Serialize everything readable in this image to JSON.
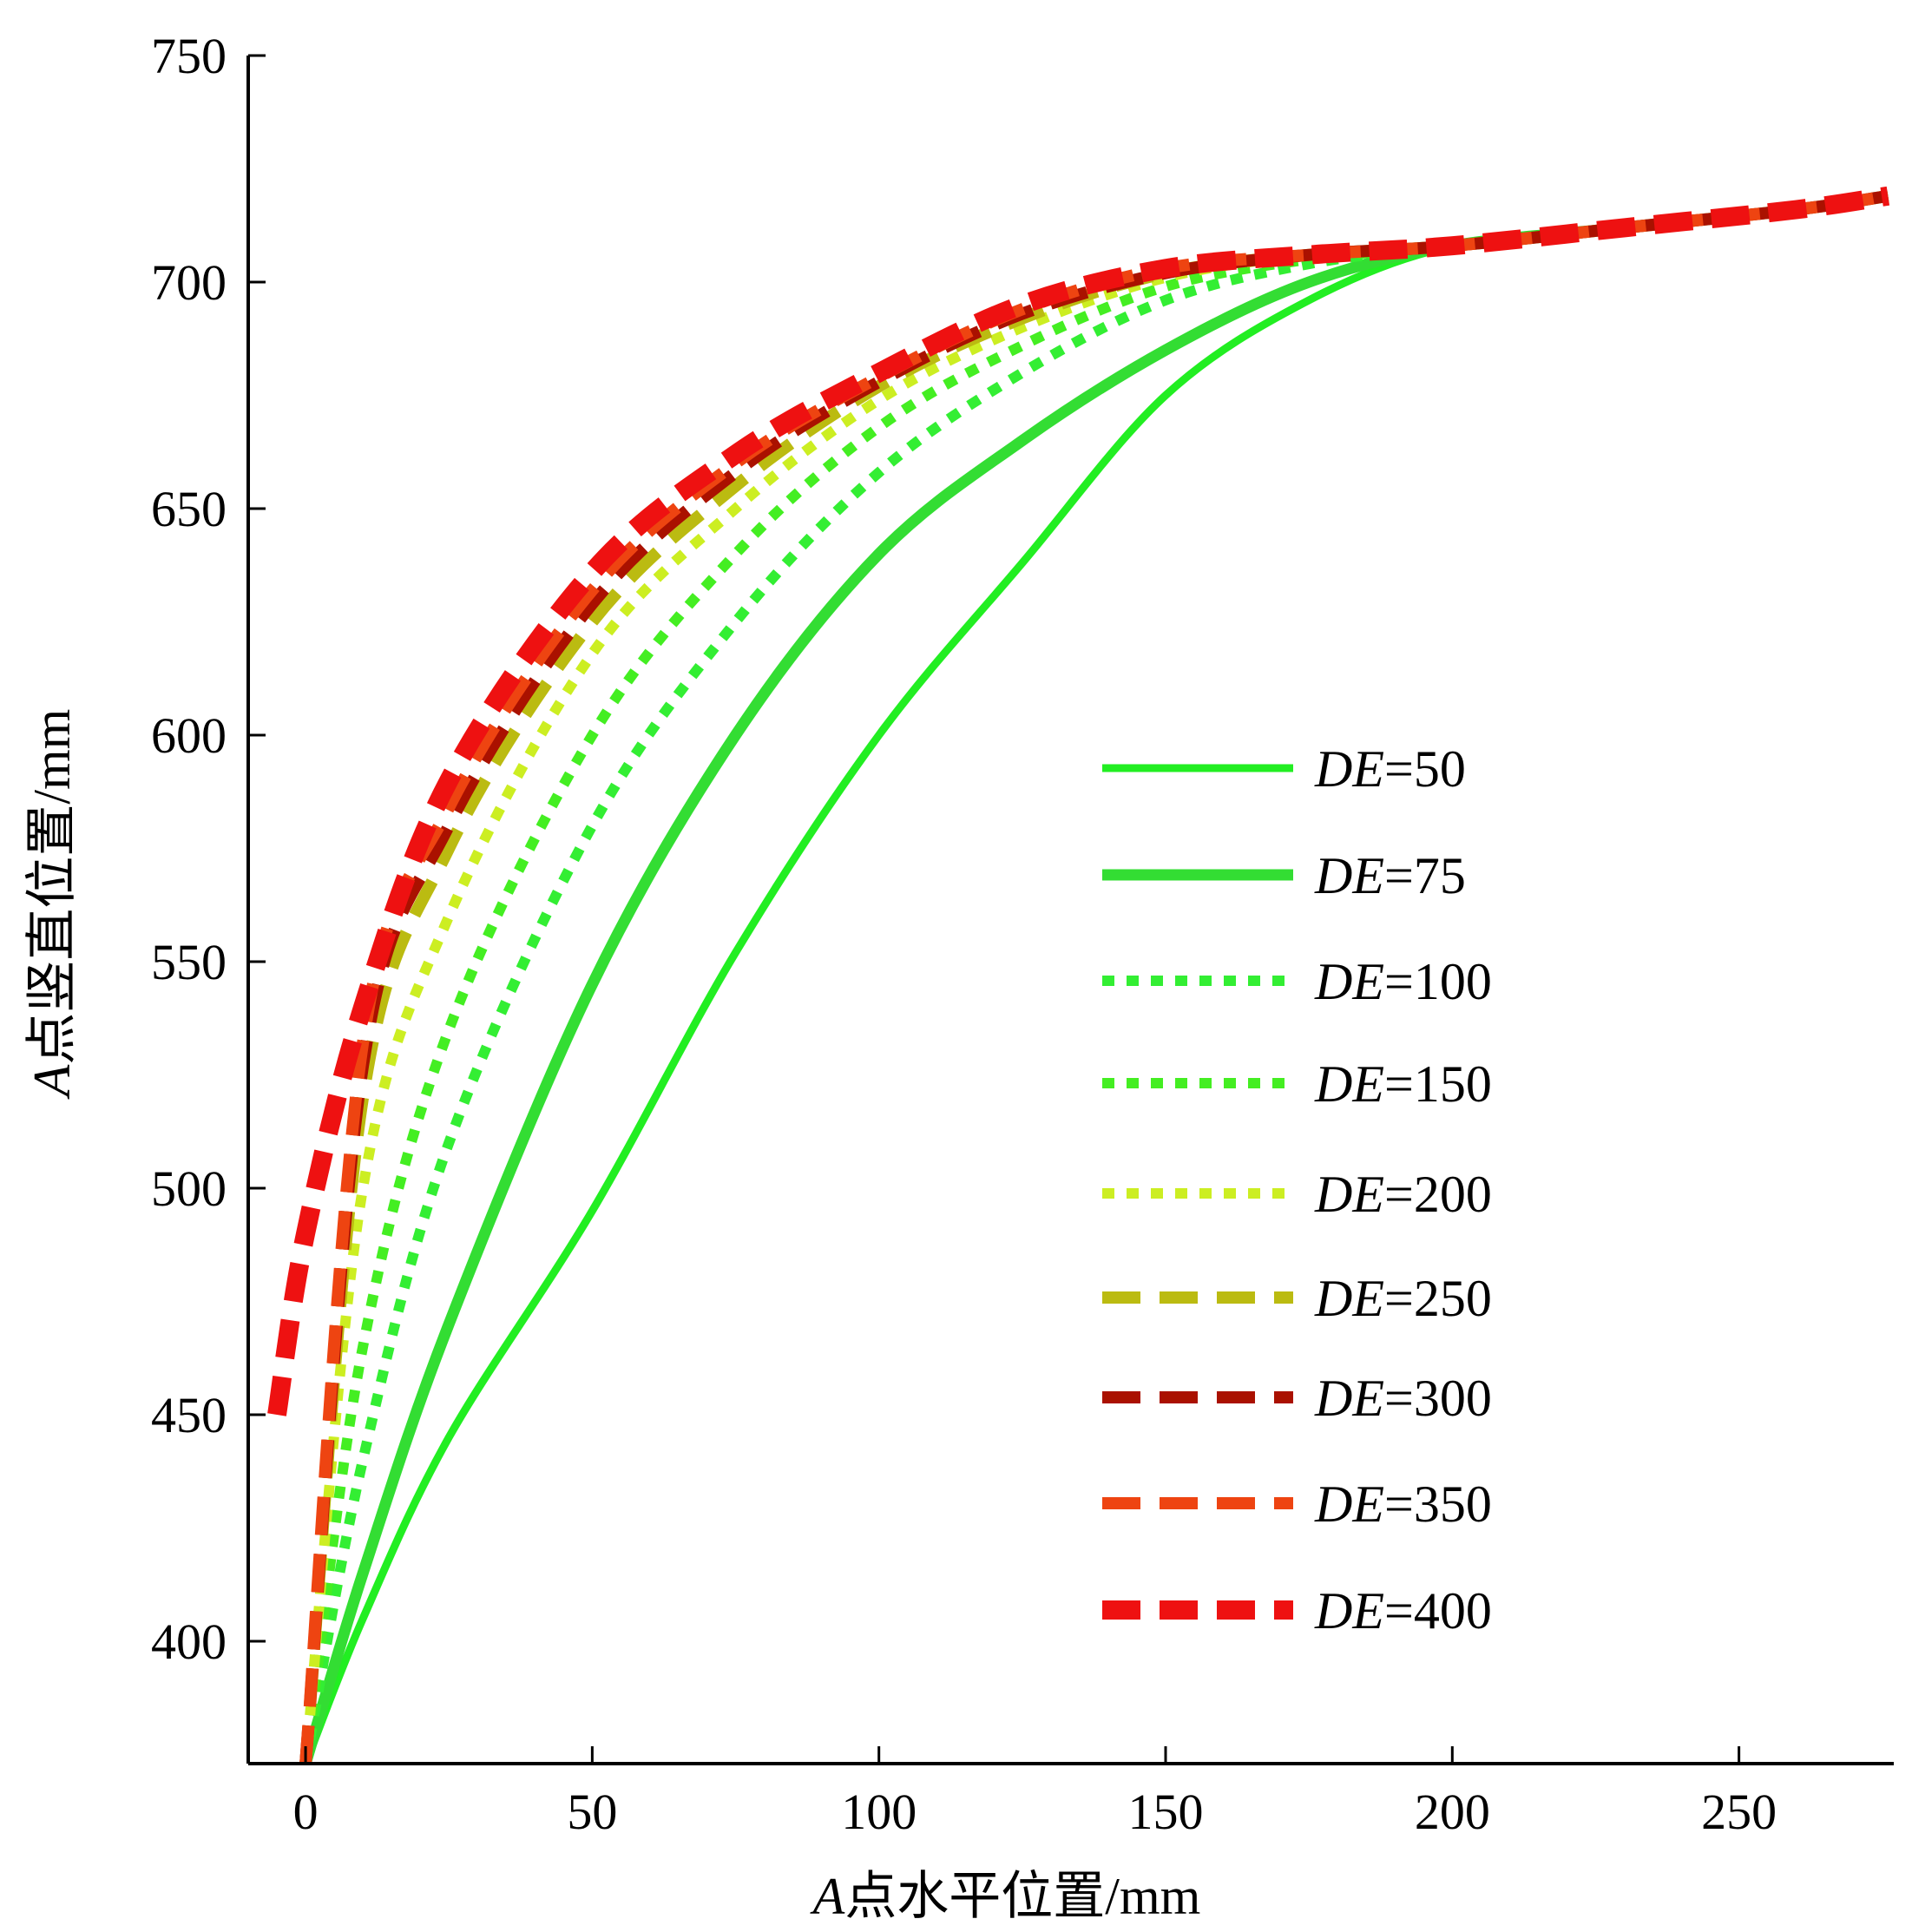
{
  "chart_data": {
    "type": "line",
    "xlabel_prefix": "A",
    "xlabel_rest": "点水平位置/mm",
    "ylabel_prefix": "A",
    "ylabel_rest": "点竖直位置/mm",
    "xlim": [
      -10,
      277
    ],
    "ylim": [
      373,
      750
    ],
    "xticks": [
      0,
      50,
      100,
      150,
      200,
      250
    ],
    "yticks": [
      400,
      450,
      500,
      550,
      600,
      650,
      700,
      750
    ],
    "grid": false,
    "legend_position": "center-right",
    "series": [
      {
        "name_prefix": "DE",
        "name_suffix": "=50",
        "color": "#22ee22",
        "style": "solid",
        "x": [
          0,
          10,
          25,
          50,
          75,
          100,
          125,
          150,
          175,
          200,
          230,
          260,
          276
        ],
        "y": [
          373,
          405,
          445,
          495,
          552,
          600,
          638,
          675,
          696,
          708,
          712,
          716,
          719
        ]
      },
      {
        "name_prefix": "DE",
        "name_suffix": "=75",
        "color": "#33dd33",
        "style": "solid-thick",
        "x": [
          0,
          10,
          25,
          50,
          75,
          100,
          125,
          150,
          175,
          200,
          230,
          260,
          276
        ],
        "y": [
          373,
          415,
          470,
          545,
          600,
          640,
          665,
          685,
          700,
          708,
          712,
          716,
          719
        ]
      },
      {
        "name_prefix": "DE",
        "name_suffix": "=100",
        "color": "#33ee33",
        "style": "dotted",
        "x": [
          0,
          10,
          25,
          50,
          75,
          100,
          125,
          150,
          175,
          200,
          230,
          260,
          276
        ],
        "y": [
          373,
          440,
          510,
          580,
          625,
          658,
          680,
          696,
          704,
          708,
          712,
          716,
          719
        ]
      },
      {
        "name_prefix": "DE",
        "name_suffix": "=150",
        "color": "#44ee22",
        "style": "dotted",
        "x": [
          0,
          10,
          25,
          50,
          75,
          100,
          125,
          150,
          175,
          200,
          230,
          260,
          276
        ],
        "y": [
          373,
          465,
          535,
          600,
          640,
          668,
          686,
          699,
          705,
          708,
          712,
          716,
          719
        ]
      },
      {
        "name_prefix": "DE",
        "name_suffix": "=200",
        "color": "#ccee22",
        "style": "dotted",
        "x": [
          0,
          10,
          25,
          50,
          75,
          100,
          125,
          150,
          175,
          200,
          230,
          260,
          276
        ],
        "y": [
          373,
          500,
          560,
          618,
          650,
          674,
          690,
          701,
          706,
          708,
          712,
          716,
          719
        ]
      },
      {
        "name_prefix": "DE",
        "name_suffix": "=250",
        "color": "#bbbb11",
        "style": "dashed",
        "x": [
          0,
          10,
          25,
          50,
          75,
          100,
          125,
          150,
          175,
          200,
          230,
          260,
          276
        ],
        "y": [
          373,
          520,
          575,
          625,
          655,
          677,
          692,
          702,
          706,
          708,
          712,
          716,
          719
        ]
      },
      {
        "name_prefix": "DE",
        "name_suffix": "=300",
        "color": "#aa1100",
        "style": "dashed",
        "x": [
          0,
          10,
          25,
          50,
          75,
          100,
          125,
          150,
          175,
          200,
          230,
          260,
          276
        ],
        "y": [
          373,
          527,
          580,
          629,
          658,
          678,
          693,
          702,
          706,
          708,
          712,
          716,
          719
        ]
      },
      {
        "name_prefix": "DE",
        "name_suffix": "=350",
        "color": "#ee4411",
        "style": "dashed",
        "x": [
          0,
          10,
          25,
          50,
          75,
          100,
          125,
          150,
          175,
          200,
          230,
          260,
          276
        ],
        "y": [
          373,
          532,
          584,
          632,
          660,
          679,
          694,
          703,
          706,
          708,
          712,
          716,
          719
        ]
      },
      {
        "name_prefix": "DE",
        "name_suffix": "=400",
        "color": "#ee1111",
        "style": "dashed-thick",
        "x": [
          -5,
          0,
          10,
          25,
          50,
          75,
          100,
          125,
          150,
          175,
          200,
          230,
          260,
          276
        ],
        "y": [
          450,
          490,
          540,
          590,
          636,
          662,
          680,
          695,
          703,
          706,
          708,
          712,
          716,
          719
        ]
      }
    ]
  }
}
